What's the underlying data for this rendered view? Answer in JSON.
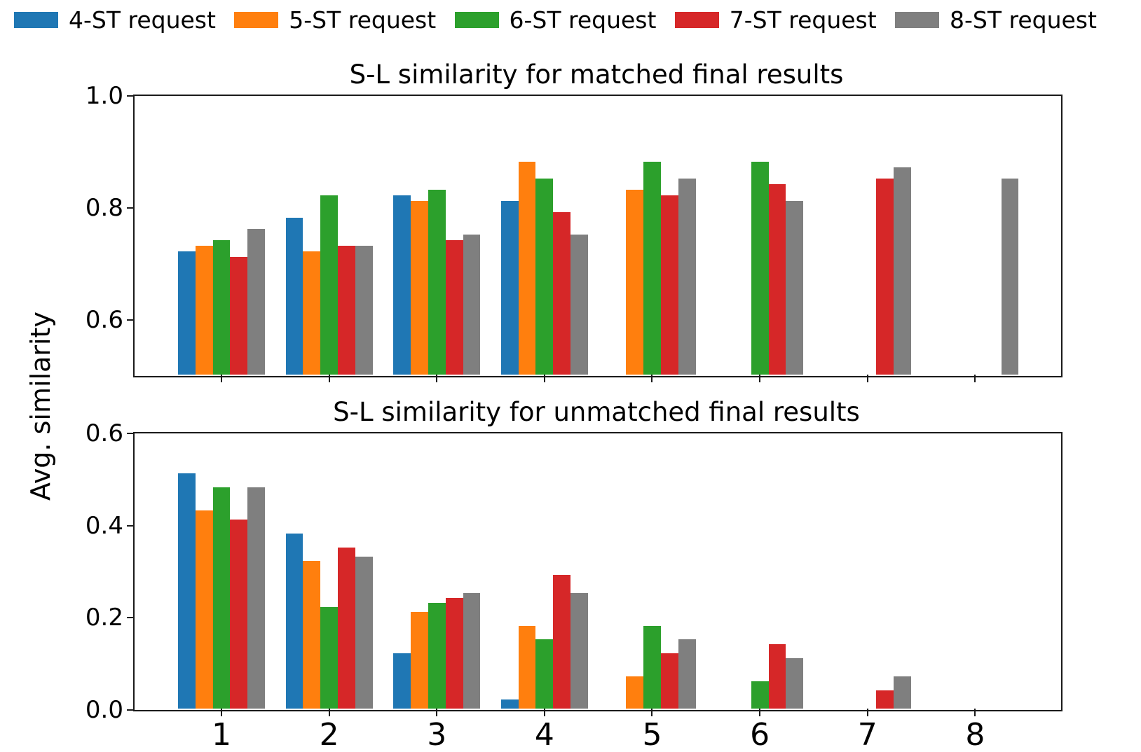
{
  "legend": {
    "items": [
      {
        "label": "4-ST request",
        "color": "#1f77b4",
        "icon": "blue-swatch"
      },
      {
        "label": "5-ST request",
        "color": "#ff7f0e",
        "icon": "orange-swatch"
      },
      {
        "label": "6-ST request",
        "color": "#2ca02c",
        "icon": "green-swatch"
      },
      {
        "label": "7-ST request",
        "color": "#d62728",
        "icon": "red-swatch"
      },
      {
        "label": "8-ST request",
        "color": "#7f7f7f",
        "icon": "gray-swatch"
      }
    ]
  },
  "ylabel": "Avg. similarity",
  "chart_data": [
    {
      "type": "bar",
      "title": "S-L similarity for matched final results",
      "categories": [
        "1",
        "2",
        "3",
        "4",
        "5",
        "6",
        "7",
        "8"
      ],
      "series": [
        {
          "name": "4-ST request",
          "color": "#1f77b4",
          "values": [
            0.72,
            0.78,
            0.82,
            0.81,
            null,
            null,
            null,
            null
          ]
        },
        {
          "name": "5-ST request",
          "color": "#ff7f0e",
          "values": [
            0.73,
            0.72,
            0.81,
            0.88,
            0.83,
            null,
            null,
            null
          ]
        },
        {
          "name": "6-ST request",
          "color": "#2ca02c",
          "values": [
            0.74,
            0.82,
            0.83,
            0.85,
            0.88,
            0.88,
            null,
            null
          ]
        },
        {
          "name": "7-ST request",
          "color": "#d62728",
          "values": [
            0.71,
            0.73,
            0.74,
            0.79,
            0.82,
            0.84,
            0.85,
            null
          ]
        },
        {
          "name": "8-ST request",
          "color": "#7f7f7f",
          "values": [
            0.76,
            0.73,
            0.75,
            0.75,
            0.85,
            0.81,
            0.87,
            0.85
          ]
        }
      ],
      "xlabel": "",
      "ylabel": "Avg. similarity",
      "ylim": [
        0.5,
        1.0
      ],
      "yticks": [
        "0.6",
        "0.8",
        "1.0"
      ],
      "xtick_labels_shown": false,
      "grid": false,
      "legend_position": "top"
    },
    {
      "type": "bar",
      "title": "S-L similarity for unmatched final results",
      "categories": [
        "1",
        "2",
        "3",
        "4",
        "5",
        "6",
        "7",
        "8"
      ],
      "series": [
        {
          "name": "4-ST request",
          "color": "#1f77b4",
          "values": [
            0.51,
            0.38,
            0.12,
            0.02,
            null,
            null,
            null,
            null
          ]
        },
        {
          "name": "5-ST request",
          "color": "#ff7f0e",
          "values": [
            0.43,
            0.32,
            0.21,
            0.18,
            0.07,
            null,
            null,
            null
          ]
        },
        {
          "name": "6-ST request",
          "color": "#2ca02c",
          "values": [
            0.48,
            0.22,
            0.23,
            0.15,
            0.18,
            0.06,
            null,
            null
          ]
        },
        {
          "name": "7-ST request",
          "color": "#d62728",
          "values": [
            0.41,
            0.35,
            0.24,
            0.29,
            0.12,
            0.14,
            0.04,
            null
          ]
        },
        {
          "name": "8-ST request",
          "color": "#7f7f7f",
          "values": [
            0.48,
            0.33,
            0.25,
            0.25,
            0.15,
            0.11,
            0.07,
            null
          ]
        }
      ],
      "xlabel": "",
      "ylabel": "Avg. similarity",
      "ylim": [
        0.0,
        0.6
      ],
      "yticks": [
        "0.0",
        "0.2",
        "0.4",
        "0.6"
      ],
      "xtick_labels_shown": true,
      "grid": false,
      "legend_position": "top"
    }
  ]
}
